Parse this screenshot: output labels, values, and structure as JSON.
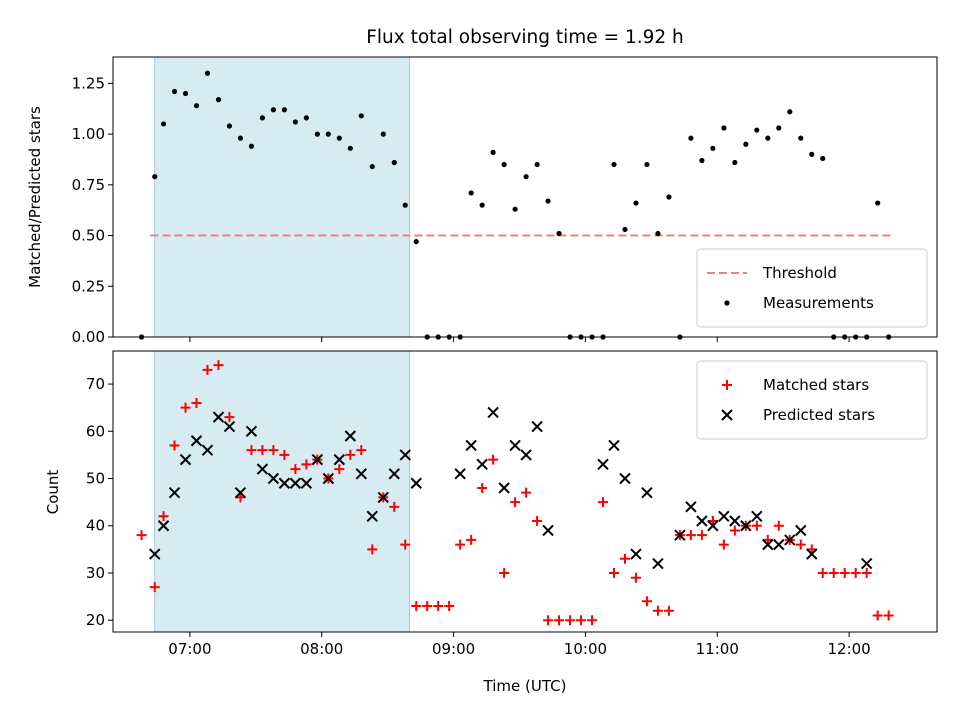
{
  "chart_data": [
    {
      "type": "scatter",
      "title": "Flux total observing time = 1.92 h",
      "xlabel": "",
      "ylabel": "Matched/Predicted stars",
      "xlim": [
        "06:25",
        "12:40"
      ],
      "ylim": [
        0,
        1.38
      ],
      "yticks": [
        "0.00",
        "0.25",
        "0.50",
        "0.75",
        "1.00",
        "1.25"
      ],
      "ytick_values": [
        0,
        0.25,
        0.5,
        0.75,
        1.0,
        1.25
      ],
      "shaded_span": [
        "06:44",
        "08:40"
      ],
      "threshold": {
        "name": "Threshold",
        "value": 0.5,
        "x_range": [
          "06:42",
          "12:20"
        ],
        "color": "#f08080"
      },
      "legend": {
        "placement": "lower-right",
        "entries": [
          "Threshold",
          "Measurements"
        ]
      },
      "series": [
        {
          "name": "Measurements",
          "color": "#000000",
          "x": [
            "06:38",
            "06:44",
            "06:48",
            "06:53",
            "06:58",
            "07:03",
            "07:08",
            "07:13",
            "07:18",
            "07:23",
            "07:28",
            "07:33",
            "07:38",
            "07:43",
            "07:48",
            "07:53",
            "07:58",
            "08:03",
            "08:08",
            "08:13",
            "08:18",
            "08:23",
            "08:28",
            "08:33",
            "08:38",
            "08:43",
            "08:48",
            "08:53",
            "08:58",
            "09:03",
            "09:08",
            "09:13",
            "09:18",
            "09:23",
            "09:28",
            "09:33",
            "09:38",
            "09:43",
            "09:48",
            "09:53",
            "09:58",
            "10:03",
            "10:08",
            "10:13",
            "10:18",
            "10:23",
            "10:28",
            "10:33",
            "10:38",
            "10:43",
            "10:48",
            "10:53",
            "10:58",
            "11:03",
            "11:08",
            "11:13",
            "11:18",
            "11:23",
            "11:28",
            "11:33",
            "11:38",
            "11:43",
            "11:48",
            "11:53",
            "11:58",
            "12:03",
            "12:08",
            "12:13",
            "12:18"
          ],
          "y": [
            0.0,
            0.79,
            1.05,
            1.21,
            1.2,
            1.14,
            1.3,
            1.17,
            1.04,
            0.98,
            0.94,
            1.08,
            1.12,
            1.12,
            1.06,
            1.08,
            1.0,
            1.0,
            0.98,
            0.93,
            1.09,
            0.84,
            1.0,
            0.86,
            0.65,
            0.47,
            0.0,
            0.0,
            0.0,
            0.0,
            0.71,
            0.65,
            0.91,
            0.85,
            0.63,
            0.79,
            0.85,
            0.67,
            0.51,
            0.0,
            0.0,
            0.0,
            0.0,
            0.85,
            0.53,
            0.66,
            0.85,
            0.51,
            0.69,
            0.0,
            0.98,
            0.87,
            0.93,
            1.03,
            0.86,
            0.95,
            1.02,
            0.98,
            1.03,
            1.11,
            0.98,
            0.9,
            0.88,
            0.0,
            0.0,
            0.0,
            0.0,
            0.66,
            0.0
          ]
        }
      ]
    },
    {
      "type": "scatter",
      "title": "",
      "xlabel": "Time (UTC)",
      "ylabel": "Count",
      "xlim": [
        "06:25",
        "12:40"
      ],
      "ylim": [
        17.5,
        77
      ],
      "yticks": [
        "20",
        "30",
        "40",
        "50",
        "60",
        "70"
      ],
      "ytick_values": [
        20,
        30,
        40,
        50,
        60,
        70
      ],
      "xticks": [
        "07:00",
        "08:00",
        "09:00",
        "10:00",
        "11:00",
        "12:00"
      ],
      "shaded_span": [
        "06:44",
        "08:40"
      ],
      "legend": {
        "placement": "upper-right",
        "entries": [
          "Matched stars",
          "Predicted stars"
        ]
      },
      "series": [
        {
          "name": "Matched stars",
          "marker": "plus",
          "color": "#ff0000",
          "x": [
            "06:38",
            "06:44",
            "06:48",
            "06:53",
            "06:58",
            "07:03",
            "07:08",
            "07:13",
            "07:18",
            "07:23",
            "07:28",
            "07:33",
            "07:38",
            "07:43",
            "07:48",
            "07:53",
            "07:58",
            "08:03",
            "08:08",
            "08:13",
            "08:18",
            "08:23",
            "08:28",
            "08:33",
            "08:38",
            "08:43",
            "08:48",
            "08:53",
            "08:58",
            "09:03",
            "09:08",
            "09:13",
            "09:18",
            "09:23",
            "09:28",
            "09:33",
            "09:38",
            "09:43",
            "09:48",
            "09:53",
            "09:58",
            "10:03",
            "10:08",
            "10:13",
            "10:18",
            "10:23",
            "10:28",
            "10:33",
            "10:38",
            "10:43",
            "10:48",
            "10:53",
            "10:58",
            "11:03",
            "11:08",
            "11:13",
            "11:18",
            "11:23",
            "11:28",
            "11:33",
            "11:38",
            "11:43",
            "11:48",
            "11:53",
            "11:58",
            "12:03",
            "12:08",
            "12:13",
            "12:18"
          ],
          "y": [
            38,
            27,
            42,
            57,
            65,
            66,
            73,
            74,
            63,
            46,
            56,
            56,
            56,
            55,
            52,
            53,
            54,
            50,
            52,
            55,
            56,
            35,
            46,
            44,
            36,
            23,
            23,
            23,
            23,
            36,
            37,
            48,
            54,
            30,
            45,
            47,
            41,
            20,
            20,
            20,
            20,
            20,
            45,
            30,
            33,
            29,
            24,
            22,
            22,
            38,
            38,
            38,
            41,
            36,
            39,
            40,
            40,
            37,
            40,
            37,
            36,
            35,
            30,
            30,
            30,
            30,
            30,
            21,
            21
          ]
        },
        {
          "name": "Predicted stars",
          "marker": "cross",
          "color": "#000000",
          "x": [
            "06:44",
            "06:48",
            "06:53",
            "06:58",
            "07:03",
            "07:08",
            "07:13",
            "07:18",
            "07:23",
            "07:28",
            "07:33",
            "07:38",
            "07:43",
            "07:48",
            "07:53",
            "07:58",
            "08:03",
            "08:08",
            "08:13",
            "08:18",
            "08:23",
            "08:28",
            "08:33",
            "08:38",
            "08:43",
            "09:03",
            "09:08",
            "09:13",
            "09:18",
            "09:23",
            "09:28",
            "09:33",
            "09:38",
            "09:43",
            "10:08",
            "10:13",
            "10:18",
            "10:23",
            "10:28",
            "10:33",
            "10:43",
            "10:48",
            "10:53",
            "10:58",
            "11:03",
            "11:08",
            "11:13",
            "11:18",
            "11:23",
            "11:28",
            "11:33",
            "11:38",
            "11:43",
            "12:08"
          ],
          "y": [
            34,
            40,
            47,
            54,
            58,
            56,
            63,
            61,
            47,
            60,
            52,
            50,
            49,
            49,
            49,
            54,
            50,
            54,
            59,
            51,
            42,
            46,
            51,
            55,
            49,
            51,
            57,
            53,
            64,
            48,
            57,
            55,
            61,
            39,
            53,
            57,
            50,
            34,
            47,
            32,
            38,
            44,
            41,
            40,
            42,
            41,
            40,
            42,
            36,
            36,
            37,
            39,
            34,
            32
          ]
        }
      ]
    }
  ]
}
